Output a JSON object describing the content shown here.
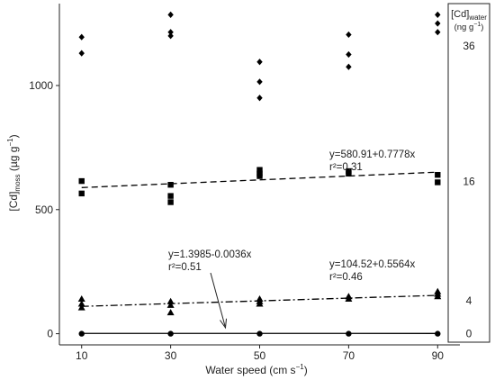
{
  "chart_data": {
    "type": "scatter",
    "xlabel": "Water speed (cm s",
    "xlabel_sup": "−1",
    "xlabel_close": ")",
    "ylabel_main": "[Cd]",
    "ylabel_sub": "moss",
    "ylabel_unit": " (µg g",
    "ylabel_sup": "−1",
    "ylabel_close": ")",
    "legend_title": "[Cd]",
    "legend_title_sub": "water",
    "legend_unit": "(ng g",
    "legend_unit_sup": "−1",
    "legend_unit_close": ")",
    "xlim": [
      5,
      95
    ],
    "ylim": [
      -45,
      1330
    ],
    "x_ticks": [
      10,
      30,
      50,
      70,
      90
    ],
    "y_ticks": [
      0,
      500,
      1000
    ],
    "series": [
      {
        "name": "36",
        "marker": "diamond",
        "points": [
          [
            10,
            1195
          ],
          [
            10,
            1130
          ],
          [
            30,
            1285
          ],
          [
            30,
            1215
          ],
          [
            30,
            1200
          ],
          [
            50,
            1095
          ],
          [
            50,
            1015
          ],
          [
            50,
            950
          ],
          [
            70,
            1205
          ],
          [
            70,
            1125
          ],
          [
            70,
            1075
          ],
          [
            90,
            1285
          ],
          [
            90,
            1250
          ],
          [
            90,
            1215
          ]
        ]
      },
      {
        "name": "16",
        "marker": "square",
        "points": [
          [
            10,
            615
          ],
          [
            10,
            565
          ],
          [
            30,
            600
          ],
          [
            30,
            555
          ],
          [
            30,
            530
          ],
          [
            50,
            660
          ],
          [
            50,
            645
          ],
          [
            50,
            635
          ],
          [
            70,
            655
          ],
          [
            70,
            645
          ],
          [
            90,
            640
          ],
          [
            90,
            610
          ]
        ],
        "fit": {
          "intercept": 580.91,
          "slope": 0.7778,
          "dash": "7,4"
        },
        "equation": "y=580.91+0.7778x",
        "r2": "r²=0.31"
      },
      {
        "name": "4",
        "marker": "triangle",
        "points": [
          [
            10,
            140
          ],
          [
            10,
            120
          ],
          [
            10,
            105
          ],
          [
            30,
            130
          ],
          [
            30,
            115
          ],
          [
            30,
            85
          ],
          [
            50,
            140
          ],
          [
            50,
            130
          ],
          [
            50,
            120
          ],
          [
            70,
            150
          ],
          [
            70,
            140
          ],
          [
            90,
            170
          ],
          [
            90,
            160
          ],
          [
            90,
            150
          ]
        ],
        "fit": {
          "intercept": 104.52,
          "slope": 0.5564,
          "dash": "8,3,2,3"
        },
        "equation": "y=104.52+0.5564x",
        "r2": "r²=0.46"
      },
      {
        "name": "0",
        "marker": "circle",
        "points": [
          [
            10,
            0
          ],
          [
            30,
            0
          ],
          [
            50,
            0
          ],
          [
            70,
            0
          ],
          [
            90,
            0
          ]
        ],
        "fit": {
          "intercept": 1.3985,
          "slope": -0.0036,
          "dash": ""
        },
        "equation": "y=1.3985-0.0036x",
        "r2": "r²=0.51"
      }
    ]
  }
}
